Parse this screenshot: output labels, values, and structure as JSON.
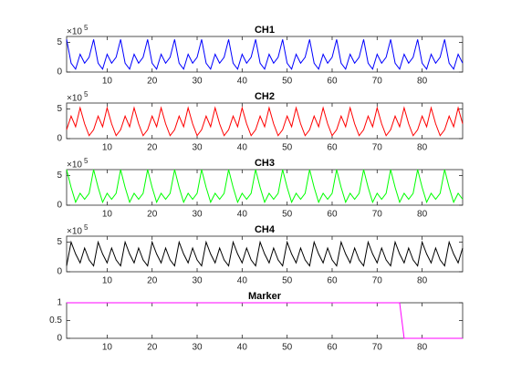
{
  "chart_data": [
    {
      "type": "line",
      "title": "CH1",
      "y_exponent_base": "×10",
      "y_exponent": "5",
      "x": [
        1,
        2,
        3,
        4,
        5,
        6,
        7,
        8,
        9,
        10,
        11,
        12,
        13,
        14,
        15,
        16,
        17,
        18,
        19,
        20,
        21,
        22,
        23,
        24,
        25,
        26,
        27,
        28,
        29,
        30,
        31,
        32,
        33,
        34,
        35,
        36,
        37,
        38,
        39,
        40,
        41,
        42,
        43,
        44,
        45,
        46,
        47,
        48,
        49,
        50,
        51,
        52,
        53,
        54,
        55,
        56,
        57,
        58,
        59,
        60,
        61,
        62,
        63,
        64,
        65,
        66,
        67,
        68,
        69,
        70,
        71,
        72,
        73,
        74,
        75,
        76,
        77,
        78,
        79,
        80,
        81,
        82,
        83,
        84,
        85,
        86,
        87,
        88,
        89
      ],
      "series": [
        {
          "name": "CH1",
          "color": "#0000ff",
          "values": [
            5.5,
            1.5,
            0.5,
            3,
            1.5,
            2.5,
            5.5,
            1.5,
            0.5,
            3,
            1.5,
            2.5,
            5.5,
            1.5,
            0.5,
            3,
            1.5,
            2.5,
            5.5,
            1.5,
            0.5,
            3,
            1.5,
            2.5,
            5.5,
            1.5,
            0.5,
            3,
            1.5,
            2.5,
            5.5,
            1.5,
            0.5,
            3,
            1.5,
            2.5,
            5.5,
            1.5,
            0.5,
            3,
            1.5,
            2.5,
            5.5,
            1.5,
            0.5,
            3,
            1.5,
            2.5,
            5.5,
            1.5,
            0.5,
            3,
            1.5,
            2.5,
            5.5,
            1.5,
            0.5,
            3,
            1.5,
            2.5,
            5.5,
            1.5,
            0.5,
            3,
            1.5,
            2.5,
            5.5,
            1.5,
            0.5,
            3,
            1.5,
            2.5,
            5.5,
            1.5,
            0.5,
            3,
            1.5,
            2.5,
            5.5,
            1.5,
            0.5,
            3,
            1.5,
            2.5,
            5.5,
            1.5,
            0.5,
            3,
            1.5
          ]
        }
      ],
      "xlim": [
        1,
        89
      ],
      "xticks": [
        10,
        20,
        30,
        40,
        50,
        60,
        70,
        80
      ],
      "ylim": [
        0,
        6
      ],
      "yticks": [
        0,
        5
      ]
    },
    {
      "type": "line",
      "title": "CH2",
      "y_exponent_base": "×10",
      "y_exponent": "5",
      "x": [
        1,
        2,
        3,
        4,
        5,
        6,
        7,
        8,
        9,
        10,
        11,
        12,
        13,
        14,
        15,
        16,
        17,
        18,
        19,
        20,
        21,
        22,
        23,
        24,
        25,
        26,
        27,
        28,
        29,
        30,
        31,
        32,
        33,
        34,
        35,
        36,
        37,
        38,
        39,
        40,
        41,
        42,
        43,
        44,
        45,
        46,
        47,
        48,
        49,
        50,
        51,
        52,
        53,
        54,
        55,
        56,
        57,
        58,
        59,
        60,
        61,
        62,
        63,
        64,
        65,
        66,
        67,
        68,
        69,
        70,
        71,
        72,
        73,
        74,
        75,
        76,
        77,
        78,
        79,
        80,
        81,
        82,
        83,
        84,
        85,
        86,
        87,
        88,
        89
      ],
      "series": [
        {
          "name": "CH2",
          "color": "#ff0000",
          "values": [
            1.5,
            3.8,
            2,
            5.2,
            2.5,
            0.5,
            1.5,
            3.8,
            2,
            5.2,
            2.5,
            0.5,
            1.5,
            3.8,
            2,
            5.2,
            2.5,
            0.5,
            1.5,
            3.8,
            2,
            5.2,
            2.5,
            0.5,
            1.5,
            3.8,
            2,
            5.2,
            2.5,
            0.5,
            1.5,
            3.8,
            2,
            5.2,
            2.5,
            0.5,
            1.5,
            3.8,
            2,
            5.2,
            2.5,
            0.5,
            1.5,
            3.8,
            2,
            5.2,
            2.5,
            0.5,
            1.5,
            3.8,
            2,
            5.2,
            2.5,
            0.5,
            1.5,
            3.8,
            2,
            5.2,
            2.5,
            0.5,
            1.5,
            3.8,
            2,
            5.2,
            2.5,
            0.5,
            1.5,
            3.8,
            2,
            5.2,
            2.5,
            0.5,
            1.5,
            3.8,
            2,
            5.2,
            2.5,
            0.5,
            1.5,
            3.8,
            2,
            5.2,
            2.5,
            0.5,
            1.5,
            3.8,
            2,
            5.2,
            2.5
          ]
        }
      ],
      "xlim": [
        1,
        89
      ],
      "xticks": [
        10,
        20,
        30,
        40,
        50,
        60,
        70,
        80
      ],
      "ylim": [
        0,
        6
      ],
      "yticks": [
        0,
        5
      ]
    },
    {
      "type": "line",
      "title": "CH3",
      "y_exponent_base": "×10",
      "y_exponent": "5",
      "x": [
        1,
        2,
        3,
        4,
        5,
        6,
        7,
        8,
        9,
        10,
        11,
        12,
        13,
        14,
        15,
        16,
        17,
        18,
        19,
        20,
        21,
        22,
        23,
        24,
        25,
        26,
        27,
        28,
        29,
        30,
        31,
        32,
        33,
        34,
        35,
        36,
        37,
        38,
        39,
        40,
        41,
        42,
        43,
        44,
        45,
        46,
        47,
        48,
        49,
        50,
        51,
        52,
        53,
        54,
        55,
        56,
        57,
        58,
        59,
        60,
        61,
        62,
        63,
        64,
        65,
        66,
        67,
        68,
        69,
        70,
        71,
        72,
        73,
        74,
        75,
        76,
        77,
        78,
        79,
        80,
        81,
        82,
        83,
        84,
        85,
        86,
        87,
        88,
        89
      ],
      "series": [
        {
          "name": "CH3",
          "color": "#00ff00",
          "values": [
            6,
            3,
            0.5,
            2,
            1,
            2,
            6,
            3,
            0.5,
            2,
            1,
            2,
            6,
            3,
            0.5,
            2,
            1,
            2,
            6,
            3,
            0.5,
            2,
            1,
            2,
            6,
            3,
            0.5,
            2,
            1,
            2,
            6,
            3,
            0.5,
            2,
            1,
            2,
            6,
            3,
            0.5,
            2,
            1,
            2,
            6,
            3,
            0.5,
            2,
            1,
            2,
            6,
            3,
            0.5,
            2,
            1,
            2,
            6,
            3,
            0.5,
            2,
            1,
            2,
            6,
            3,
            0.5,
            2,
            1,
            2,
            6,
            3,
            0.5,
            2,
            1,
            2,
            6,
            3,
            0.5,
            2,
            1,
            2,
            6,
            3,
            0.5,
            2,
            1,
            2,
            6,
            3,
            0.5,
            2,
            1
          ]
        }
      ],
      "xlim": [
        1,
        89
      ],
      "xticks": [
        10,
        20,
        30,
        40,
        50,
        60,
        70,
        80
      ],
      "ylim": [
        0,
        6
      ],
      "yticks": [
        0,
        5
      ]
    },
    {
      "type": "line",
      "title": "CH4",
      "y_exponent_base": "×10",
      "y_exponent": "5",
      "x": [
        1,
        2,
        3,
        4,
        5,
        6,
        7,
        8,
        9,
        10,
        11,
        12,
        13,
        14,
        15,
        16,
        17,
        18,
        19,
        20,
        21,
        22,
        23,
        24,
        25,
        26,
        27,
        28,
        29,
        30,
        31,
        32,
        33,
        34,
        35,
        36,
        37,
        38,
        39,
        40,
        41,
        42,
        43,
        44,
        45,
        46,
        47,
        48,
        49,
        50,
        51,
        52,
        53,
        54,
        55,
        56,
        57,
        58,
        59,
        60,
        61,
        62,
        63,
        64,
        65,
        66,
        67,
        68,
        69,
        70,
        71,
        72,
        73,
        74,
        75,
        76,
        77,
        78,
        79,
        80,
        81,
        82,
        83,
        84,
        85,
        86,
        87,
        88,
        89
      ],
      "series": [
        {
          "name": "CH4",
          "color": "#000000",
          "values": [
            1,
            5,
            3,
            1.5,
            4,
            2,
            1,
            5,
            3,
            1.5,
            4,
            2,
            1,
            5,
            3,
            1.5,
            4,
            2,
            1,
            5,
            3,
            1.5,
            4,
            2,
            1,
            5,
            3,
            1.5,
            4,
            2,
            1,
            5,
            3,
            1.5,
            4,
            2,
            1,
            5,
            3,
            1.5,
            4,
            2,
            1,
            5,
            3,
            1.5,
            4,
            2,
            1,
            5,
            3,
            1.5,
            4,
            2,
            1,
            5,
            3,
            1.5,
            4,
            2,
            1,
            5,
            3,
            1.5,
            4,
            2,
            1,
            5,
            3,
            1.5,
            4,
            2,
            1,
            5,
            3,
            1.5,
            4,
            2,
            1,
            5,
            3,
            1.5,
            4,
            2,
            1,
            5,
            3,
            1.5,
            4
          ]
        }
      ],
      "xlim": [
        1,
        89
      ],
      "xticks": [
        10,
        20,
        30,
        40,
        50,
        60,
        70,
        80
      ],
      "ylim": [
        0,
        6
      ],
      "yticks": [
        0,
        5
      ]
    },
    {
      "type": "line",
      "title": "Marker",
      "x": [
        1,
        2,
        3,
        4,
        5,
        6,
        7,
        8,
        9,
        10,
        11,
        12,
        13,
        14,
        15,
        16,
        17,
        18,
        19,
        20,
        21,
        22,
        23,
        24,
        25,
        26,
        27,
        28,
        29,
        30,
        31,
        32,
        33,
        34,
        35,
        36,
        37,
        38,
        39,
        40,
        41,
        42,
        43,
        44,
        45,
        46,
        47,
        48,
        49,
        50,
        51,
        52,
        53,
        54,
        55,
        56,
        57,
        58,
        59,
        60,
        61,
        62,
        63,
        64,
        65,
        66,
        67,
        68,
        69,
        70,
        71,
        72,
        73,
        74,
        75,
        76,
        77,
        78,
        79,
        80,
        81,
        82,
        83,
        84,
        85,
        86,
        87,
        88,
        89
      ],
      "series": [
        {
          "name": "Marker",
          "color": "#ff00ff",
          "values": [
            1,
            1,
            1,
            1,
            1,
            1,
            1,
            1,
            1,
            1,
            1,
            1,
            1,
            1,
            1,
            1,
            1,
            1,
            1,
            1,
            1,
            1,
            1,
            1,
            1,
            1,
            1,
            1,
            1,
            1,
            1,
            1,
            1,
            1,
            1,
            1,
            1,
            1,
            1,
            1,
            1,
            1,
            1,
            1,
            1,
            1,
            1,
            1,
            1,
            1,
            1,
            1,
            1,
            1,
            1,
            1,
            1,
            1,
            1,
            1,
            1,
            1,
            1,
            1,
            1,
            1,
            1,
            1,
            1,
            1,
            1,
            1,
            1,
            1,
            1,
            0,
            0,
            0,
            0,
            0,
            0,
            0,
            0,
            0,
            0,
            0,
            0,
            0,
            0
          ]
        }
      ],
      "xlim": [
        1,
        89
      ],
      "xticks": [
        10,
        20,
        30,
        40,
        50,
        60,
        70,
        80
      ],
      "ylim": [
        0,
        1
      ],
      "yticks": [
        0,
        0.5,
        1
      ]
    }
  ]
}
